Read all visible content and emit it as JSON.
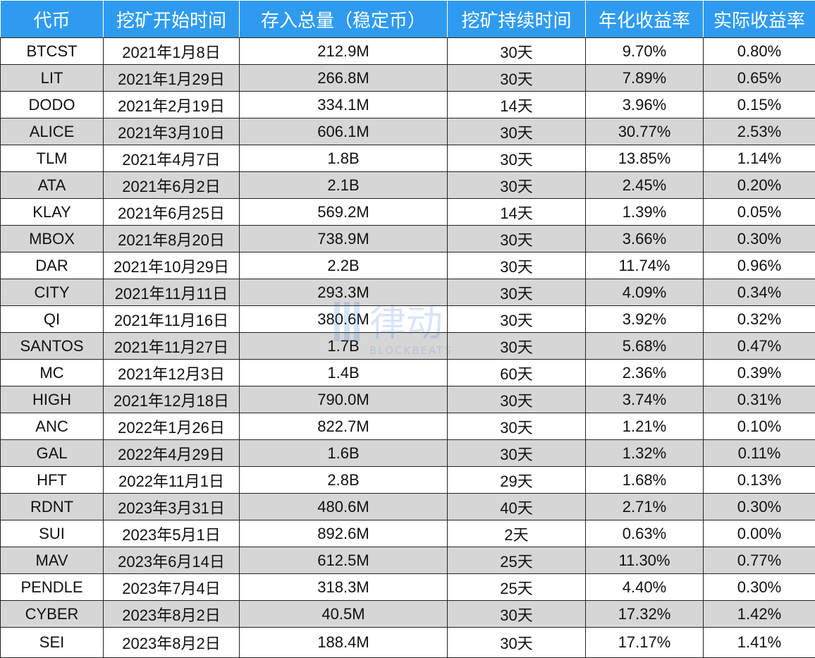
{
  "table": {
    "headers": [
      "代币",
      "挖矿开始时间",
      "存入总量（稳定币）",
      "挖矿持续时间",
      "年化收益率",
      "实际收益率"
    ],
    "rows": [
      [
        "BTCST",
        "2021年1月8日",
        "212.9M",
        "30天",
        "9.70%",
        "0.80%"
      ],
      [
        "LIT",
        "2021年1月29日",
        "266.8M",
        "30天",
        "7.89%",
        "0.65%"
      ],
      [
        "DODO",
        "2021年2月19日",
        "334.1M",
        "14天",
        "3.96%",
        "0.15%"
      ],
      [
        "ALICE",
        "2021年3月10日",
        "606.1M",
        "30天",
        "30.77%",
        "2.53%"
      ],
      [
        "TLM",
        "2021年4月7日",
        "1.8B",
        "30天",
        "13.85%",
        "1.14%"
      ],
      [
        "ATA",
        "2021年6月2日",
        "2.1B",
        "30天",
        "2.45%",
        "0.20%"
      ],
      [
        "KLAY",
        "2021年6月25日",
        "569.2M",
        "14天",
        "1.39%",
        "0.05%"
      ],
      [
        "MBOX",
        "2021年8月20日",
        "738.9M",
        "30天",
        "3.66%",
        "0.30%"
      ],
      [
        "DAR",
        "2021年10月29日",
        "2.2B",
        "30天",
        "11.74%",
        "0.96%"
      ],
      [
        "CITY",
        "2021年11月11日",
        "293.3M",
        "30天",
        "4.09%",
        "0.34%"
      ],
      [
        "QI",
        "2021年11月16日",
        "380.6M",
        "30天",
        "3.92%",
        "0.32%"
      ],
      [
        "SANTOS",
        "2021年11月27日",
        "1.7B",
        "30天",
        "5.68%",
        "0.47%"
      ],
      [
        "MC",
        "2021年12月3日",
        "1.4B",
        "60天",
        "2.36%",
        "0.39%"
      ],
      [
        "HIGH",
        "2021年12月18日",
        "790.0M",
        "30天",
        "3.74%",
        "0.31%"
      ],
      [
        "ANC",
        "2022年1月26日",
        "822.7M",
        "30天",
        "1.21%",
        "0.10%"
      ],
      [
        "GAL",
        "2022年4月29日",
        "1.6B",
        "30天",
        "1.32%",
        "0.11%"
      ],
      [
        "HFT",
        "2022年11月1日",
        "2.8B",
        "29天",
        "1.68%",
        "0.13%"
      ],
      [
        "RDNT",
        "2023年3月31日",
        "480.6M",
        "40天",
        "2.71%",
        "0.30%"
      ],
      [
        "SUI",
        "2023年5月1日",
        "892.6M",
        "2天",
        "0.63%",
        "0.00%"
      ],
      [
        "MAV",
        "2023年6月14日",
        "612.5M",
        "25天",
        "11.30%",
        "0.77%"
      ],
      [
        "PENDLE",
        "2023年7月4日",
        "318.3M",
        "25天",
        "4.40%",
        "0.30%"
      ],
      [
        "CYBER",
        "2023年8月2日",
        "40.5M",
        "30天",
        "17.32%",
        "1.42%"
      ],
      [
        "SEI",
        "2023年8月2日",
        "188.4M",
        "30天",
        "17.17%",
        "1.41%"
      ]
    ]
  },
  "watermark": {
    "brand": "律动",
    "sub": "BLOCKBEATS"
  },
  "colors": {
    "header_bg": "#2f9bf0",
    "header_text": "#ffffff",
    "alt_row_bg": "#d6d6d6",
    "row_bg": "#ffffff"
  }
}
